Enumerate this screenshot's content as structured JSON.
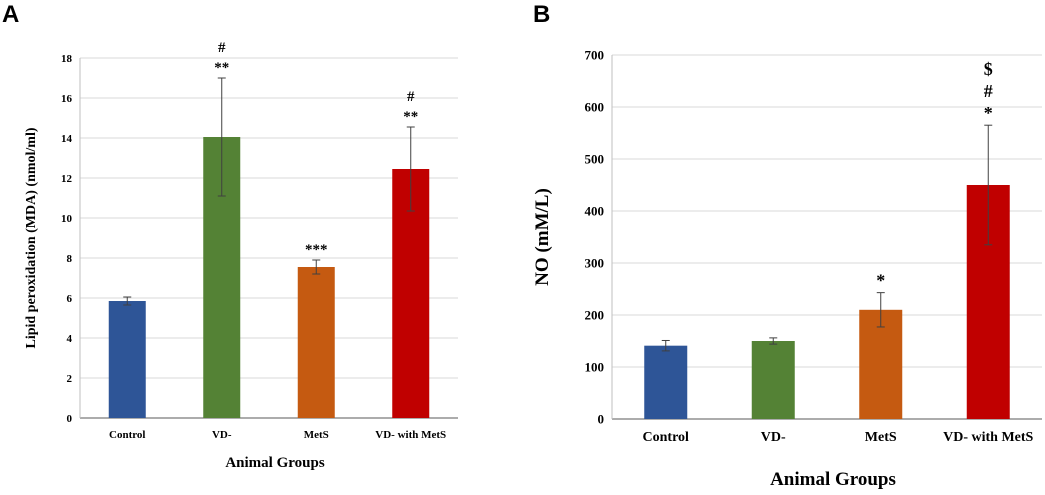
{
  "chart_data": [
    {
      "panel": "A",
      "type": "bar",
      "categories": [
        "Control",
        "VD-",
        "MetS",
        "VD- with MetS"
      ],
      "values": [
        5.85,
        14.05,
        7.55,
        12.45
      ],
      "errors": [
        0.2,
        2.95,
        0.35,
        2.1
      ],
      "colors": [
        "#2e5597",
        "#548235",
        "#c55a11",
        "#c00000"
      ],
      "annotations": [
        [],
        [
          "**",
          "#"
        ],
        [
          "***"
        ],
        [
          "**",
          "#"
        ]
      ],
      "title": "",
      "xlabel": "Animal Groups",
      "ylabel": "Lipid peroxidation (MDA) (nmol/ml)",
      "ylim": [
        0,
        18
      ],
      "yticks": [
        0,
        2,
        4,
        6,
        8,
        10,
        12,
        14,
        16,
        18
      ],
      "grid": true
    },
    {
      "panel": "B",
      "type": "bar",
      "categories": [
        "Control",
        "VD-",
        "MetS",
        "VD- with MetS"
      ],
      "values": [
        141,
        150,
        210,
        450
      ],
      "errors": [
        10,
        6,
        33,
        115
      ],
      "colors": [
        "#2e5597",
        "#548235",
        "#c55a11",
        "#c00000"
      ],
      "annotations": [
        [],
        [],
        [
          "*"
        ],
        [
          "*",
          "#",
          "$"
        ]
      ],
      "title": "",
      "xlabel": "Animal Groups",
      "ylabel": "NO (mM/L)",
      "ylim": [
        0,
        700
      ],
      "yticks": [
        0,
        100,
        200,
        300,
        400,
        500,
        600,
        700
      ],
      "grid": true
    }
  ]
}
